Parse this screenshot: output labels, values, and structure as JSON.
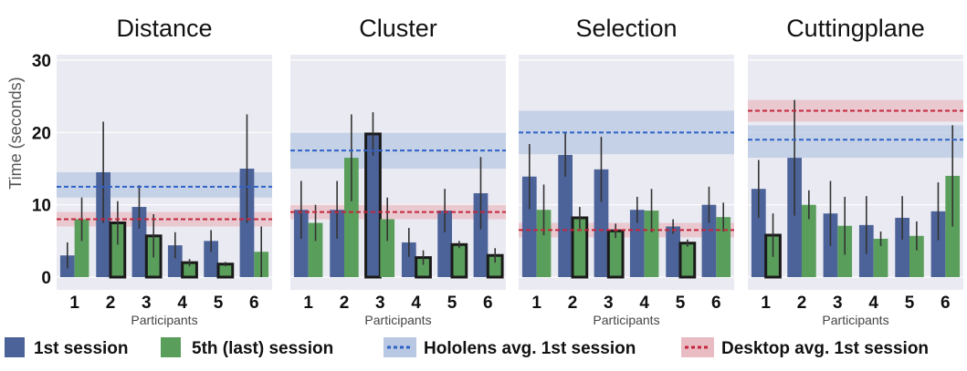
{
  "colors": {
    "session1": "#4c6399",
    "session5": "#5a9e5c",
    "hololens": "#2e62c7",
    "desktop": "#c3263c",
    "hololens_band": "#b8c8e2",
    "desktop_band": "#e9bcc4",
    "panel_bg": "#eaeaf2",
    "outline": "#1a1a1a",
    "errbar": "#333333"
  },
  "y_axis": {
    "label": "Time (seconds)",
    "ticks": [
      "0",
      "10",
      "20",
      "30"
    ]
  },
  "legend": {
    "session1": "1st session",
    "session5": "5th (last) session",
    "hololens": "Hololens avg. 1st session",
    "desktop": "Desktop avg. 1st session"
  },
  "chart_data": [
    {
      "type": "bar",
      "title": "Distance",
      "xlabel": "Participants",
      "ylabel": "Time (seconds)",
      "ylim": [
        0,
        30
      ],
      "categories": [
        "1",
        "2",
        "3",
        "4",
        "5",
        "6"
      ],
      "series": [
        {
          "name": "1st session",
          "values": [
            3.0,
            14.5,
            9.7,
            4.4,
            5.0,
            15.0
          ],
          "err": [
            1.8,
            7.0,
            3.0,
            1.8,
            1.5,
            7.5
          ]
        },
        {
          "name": "5th (last) session",
          "values": [
            8.0,
            7.5,
            5.7,
            2.0,
            1.8,
            3.5
          ],
          "err": [
            3.0,
            3.0,
            3.0,
            0.5,
            0.3,
            3.5
          ]
        }
      ],
      "highlighted_bars": [
        [
          1,
          1
        ],
        [
          1,
          2
        ],
        [
          1,
          3
        ],
        [
          1,
          4
        ]
      ],
      "hololens_avg": {
        "value": 12.5,
        "band": [
          11.0,
          14.5
        ]
      },
      "desktop_avg": {
        "value": 8.0,
        "band": [
          7.0,
          9.0
        ]
      }
    },
    {
      "type": "bar",
      "title": "Cluster",
      "xlabel": "Participants",
      "ylabel": "Time (seconds)",
      "ylim": [
        0,
        30
      ],
      "categories": [
        "1",
        "2",
        "3",
        "4",
        "5",
        "6"
      ],
      "series": [
        {
          "name": "1st session",
          "values": [
            9.3,
            9.3,
            19.8,
            4.8,
            9.2,
            11.6
          ],
          "err": [
            4.0,
            4.0,
            3.0,
            2.0,
            3.0,
            5.0
          ]
        },
        {
          "name": "5th (last) session",
          "values": [
            7.5,
            16.5,
            8.0,
            2.7,
            4.5,
            3.0
          ],
          "err": [
            2.5,
            6.0,
            3.0,
            1.0,
            0.5,
            1.0
          ]
        }
      ],
      "highlighted_bars": [
        [
          0,
          2
        ],
        [
          1,
          3
        ],
        [
          1,
          4
        ],
        [
          1,
          5
        ]
      ],
      "hololens_avg": {
        "value": 17.5,
        "band": [
          15.0,
          20.0
        ]
      },
      "desktop_avg": {
        "value": 9.0,
        "band": [
          8.0,
          10.0
        ]
      }
    },
    {
      "type": "bar",
      "title": "Selection",
      "xlabel": "Participants",
      "ylabel": "Time (seconds)",
      "ylim": [
        0,
        30
      ],
      "categories": [
        "1",
        "2",
        "3",
        "4",
        "5",
        "6"
      ],
      "series": [
        {
          "name": "1st session",
          "values": [
            13.9,
            16.9,
            14.9,
            9.3,
            7.0,
            10.0
          ],
          "err": [
            4.5,
            3.0,
            4.5,
            1.8,
            1.0,
            2.5
          ]
        },
        {
          "name": "5th (last) session",
          "values": [
            9.3,
            8.2,
            6.4,
            9.2,
            4.7,
            8.3
          ],
          "err": [
            3.5,
            1.5,
            1.0,
            3.0,
            0.5,
            2.0
          ]
        }
      ],
      "highlighted_bars": [
        [
          1,
          1
        ],
        [
          1,
          2
        ],
        [
          1,
          4
        ]
      ],
      "hololens_avg": {
        "value": 20.0,
        "band": [
          17.0,
          23.0
        ]
      },
      "desktop_avg": {
        "value": 6.5,
        "band": [
          5.5,
          7.5
        ]
      }
    },
    {
      "type": "bar",
      "title": "Cuttingplane",
      "xlabel": "Participants",
      "ylabel": "Time (seconds)",
      "ylim": [
        0,
        30
      ],
      "categories": [
        "1",
        "2",
        "3",
        "4",
        "5",
        "6"
      ],
      "series": [
        {
          "name": "1st session",
          "values": [
            12.2,
            16.5,
            8.8,
            7.2,
            8.2,
            9.1
          ],
          "err": [
            4.0,
            8.0,
            4.5,
            4.0,
            3.0,
            4.0
          ]
        },
        {
          "name": "5th (last) session",
          "values": [
            5.8,
            10.0,
            7.1,
            5.3,
            5.7,
            14.0
          ],
          "err": [
            3.0,
            2.0,
            4.0,
            1.0,
            2.0,
            7.0
          ]
        }
      ],
      "highlighted_bars": [
        [
          1,
          0
        ]
      ],
      "hololens_avg": {
        "value": 19.0,
        "band": [
          16.5,
          21.0
        ]
      },
      "desktop_avg": {
        "value": 23.0,
        "band": [
          21.5,
          24.5
        ]
      }
    }
  ]
}
